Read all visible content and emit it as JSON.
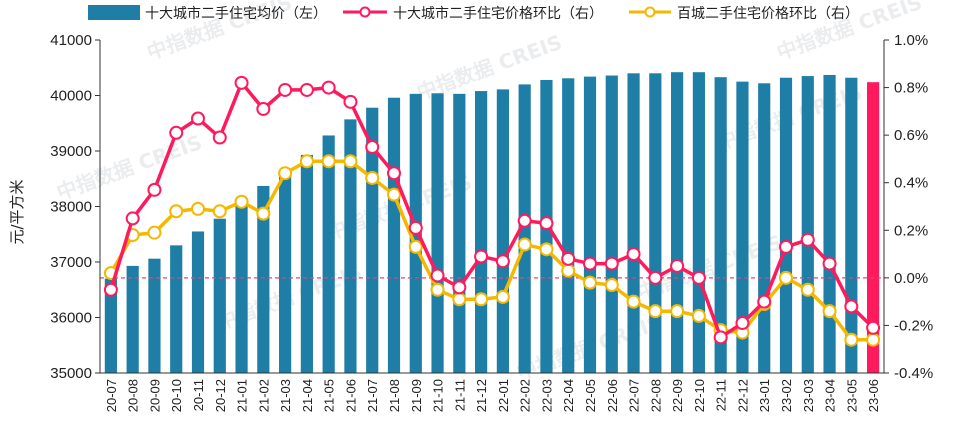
{
  "chart_data": {
    "type": "bar+line",
    "title": "",
    "ylabel_left": "元/平方米",
    "ylim_left": [
      35000,
      41000
    ],
    "yticks_left": [
      35000,
      36000,
      37000,
      38000,
      39000,
      40000,
      41000
    ],
    "ylim_right": [
      -0.4,
      1.0
    ],
    "yticks_right": [
      "-0.4%",
      "-0.2%",
      "0.0%",
      "0.2%",
      "0.4%",
      "0.6%",
      "0.8%",
      "1.0%"
    ],
    "yticks_right_values": [
      -0.4,
      -0.2,
      0.0,
      0.2,
      0.4,
      0.6,
      0.8,
      1.0
    ],
    "categories": [
      "20-07",
      "20-08",
      "20-09",
      "20-10",
      "20-11",
      "20-12",
      "21-01",
      "21-02",
      "21-03",
      "21-04",
      "21-05",
      "21-06",
      "21-07",
      "21-08",
      "21-09",
      "21-10",
      "21-11",
      "21-12",
      "22-01",
      "22-02",
      "22-03",
      "22-04",
      "22-05",
      "22-06",
      "22-07",
      "22-08",
      "22-09",
      "22-10",
      "22-11",
      "22-12",
      "23-01",
      "23-02",
      "23-03",
      "23-04",
      "23-05",
      "23-06"
    ],
    "series": [
      {
        "name": "十大城市二手住宅均价（左）",
        "type": "bar",
        "axis": "left",
        "color": "#1f7ea6",
        "highlight_color": "#ff1a5e",
        "values": [
          36700,
          36930,
          37060,
          37300,
          37550,
          37780,
          38080,
          38370,
          38650,
          38930,
          39280,
          39570,
          39780,
          39960,
          40030,
          40040,
          40030,
          40080,
          40110,
          40200,
          40280,
          40310,
          40340,
          40360,
          40400,
          40400,
          40420,
          40420,
          40330,
          40250,
          40220,
          40320,
          40350,
          40370,
          40320,
          40240
        ]
      },
      {
        "name": "十大城市二手住宅价格环比（右）",
        "type": "line",
        "axis": "right",
        "unit": "%",
        "color": "#ff1a5e",
        "values": [
          -0.05,
          0.25,
          0.37,
          0.61,
          0.67,
          0.59,
          0.82,
          0.71,
          0.79,
          0.79,
          0.8,
          0.74,
          0.55,
          0.44,
          0.21,
          0.01,
          -0.04,
          0.09,
          0.07,
          0.24,
          0.23,
          0.08,
          0.06,
          0.06,
          0.1,
          0.0,
          0.05,
          0.0,
          -0.25,
          -0.19,
          -0.1,
          0.13,
          0.16,
          0.06,
          -0.12,
          -0.21
        ]
      },
      {
        "name": "百城二手住宅价格环比（右）",
        "type": "line",
        "axis": "right",
        "unit": "%",
        "color": "#f5b800",
        "values": [
          0.02,
          0.18,
          0.19,
          0.28,
          0.29,
          0.28,
          0.32,
          0.27,
          0.44,
          0.49,
          0.49,
          0.49,
          0.42,
          0.35,
          0.13,
          -0.05,
          -0.09,
          -0.09,
          -0.08,
          0.14,
          0.12,
          0.03,
          -0.02,
          -0.03,
          -0.1,
          -0.14,
          -0.14,
          -0.16,
          -0.22,
          -0.23,
          -0.11,
          0.0,
          -0.05,
          -0.14,
          -0.26,
          -0.26
        ]
      }
    ],
    "zero_reference_line": {
      "axis": "right",
      "value": 0.0,
      "color": "#e2457a",
      "style": "dashed"
    },
    "legend": {
      "position": "top"
    },
    "grid": false
  },
  "watermark": "中指数据 CREIS"
}
